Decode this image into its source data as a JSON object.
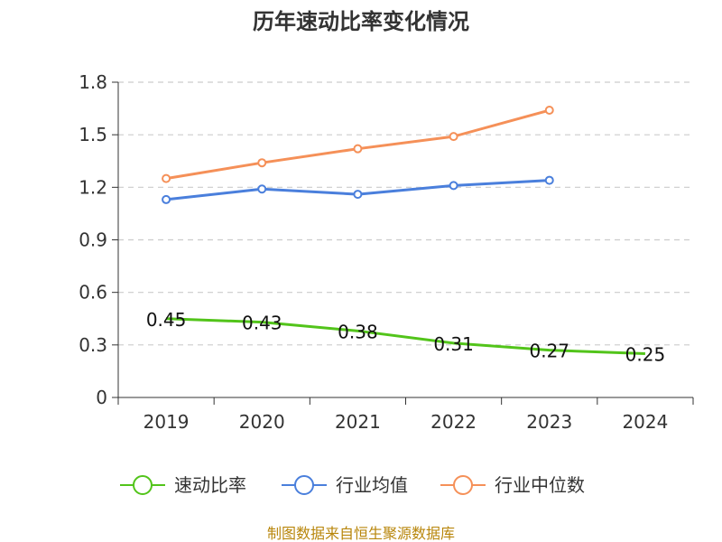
{
  "chart_data": {
    "type": "line",
    "title": "历年速动比率变化情况",
    "categories": [
      "2019",
      "2020",
      "2021",
      "2022",
      "2023",
      "2024"
    ],
    "ylim": [
      0,
      1.8
    ],
    "yticks": [
      "0",
      "0.3",
      "0.6",
      "0.9",
      "1.2",
      "1.5",
      "1.8"
    ],
    "grid": true,
    "legend_position": "bottom",
    "series": [
      {
        "name": "速动比率",
        "color": "#52c41a",
        "values": [
          0.45,
          0.43,
          0.38,
          0.31,
          0.27,
          0.25
        ],
        "labels": [
          "0.45",
          "0.43",
          "0.38",
          "0.31",
          "0.27",
          "0.25"
        ],
        "show_labels": true,
        "markers": false
      },
      {
        "name": "行业均值",
        "color": "#4a7fdc",
        "values": [
          1.13,
          1.19,
          1.16,
          1.21,
          1.24,
          null
        ],
        "show_labels": false,
        "markers": true
      },
      {
        "name": "行业中位数",
        "color": "#f59058",
        "values": [
          1.25,
          1.34,
          1.42,
          1.49,
          1.64,
          null
        ],
        "show_labels": false,
        "markers": true
      }
    ],
    "source": "制图数据来自恒生聚源数据库"
  }
}
